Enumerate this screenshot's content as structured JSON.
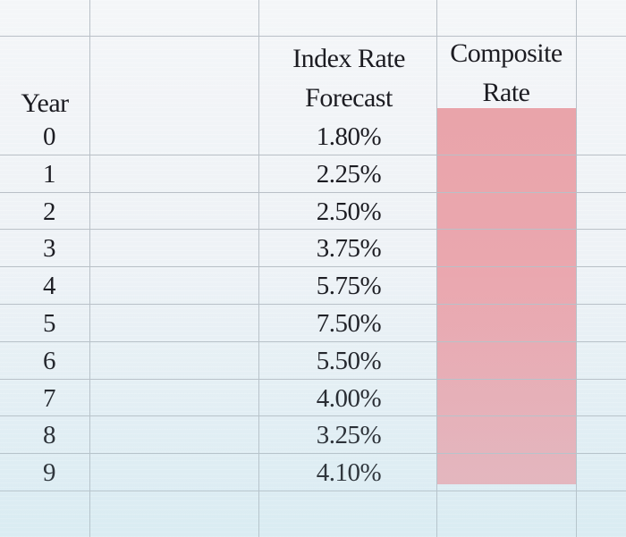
{
  "headers": {
    "year": "Year",
    "index_rate_line1": "Index Rate",
    "index_rate_line2": "Forecast",
    "composite_line1": "Composite",
    "composite_line2": "Rate"
  },
  "rows": [
    {
      "year": "0",
      "index_rate": "1.80%",
      "composite": ""
    },
    {
      "year": "1",
      "index_rate": "2.25%",
      "composite": ""
    },
    {
      "year": "2",
      "index_rate": "2.50%",
      "composite": ""
    },
    {
      "year": "3",
      "index_rate": "3.75%",
      "composite": ""
    },
    {
      "year": "4",
      "index_rate": "5.75%",
      "composite": ""
    },
    {
      "year": "5",
      "index_rate": "7.50%",
      "composite": ""
    },
    {
      "year": "6",
      "index_rate": "5.50%",
      "composite": ""
    },
    {
      "year": "7",
      "index_rate": "4.00%",
      "composite": ""
    },
    {
      "year": "8",
      "index_rate": "3.25%",
      "composite": ""
    },
    {
      "year": "9",
      "index_rate": "4.10%",
      "composite": ""
    }
  ],
  "colors": {
    "highlight": "#eba8b0",
    "gridline": "#b9c0c7",
    "text": "#1c1c22"
  }
}
